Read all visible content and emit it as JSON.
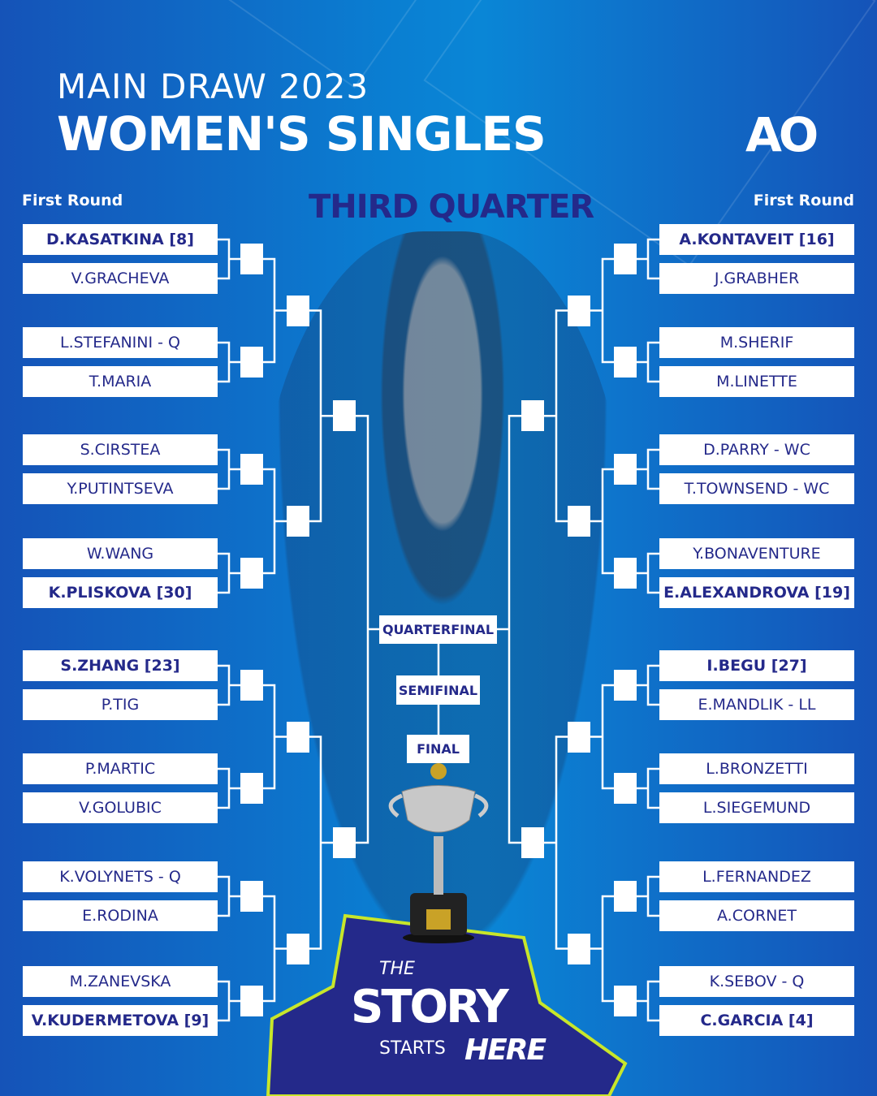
{
  "header": {
    "subtitle": "MAIN DRAW 2023",
    "title": "WOMEN'S SINGLES",
    "logo": "AO",
    "section": "THIRD QUARTER"
  },
  "left": {
    "round_label": "First Round",
    "players": [
      {
        "name": "D.KASATKINA [8]",
        "seed": true
      },
      {
        "name": "V.GRACHEVA",
        "seed": false
      },
      {
        "name": "L.STEFANINI - Q",
        "seed": false
      },
      {
        "name": "T.MARIA",
        "seed": false
      },
      {
        "name": "S.CIRSTEA",
        "seed": false
      },
      {
        "name": "Y.PUTINTSEVA",
        "seed": false
      },
      {
        "name": "W.WANG",
        "seed": false
      },
      {
        "name": "K.PLISKOVA [30]",
        "seed": true
      },
      {
        "name": "S.ZHANG [23]",
        "seed": true
      },
      {
        "name": "P.TIG",
        "seed": false
      },
      {
        "name": "P.MARTIC",
        "seed": false
      },
      {
        "name": "V.GOLUBIC",
        "seed": false
      },
      {
        "name": "K.VOLYNETS - Q",
        "seed": false
      },
      {
        "name": "E.RODINA",
        "seed": false
      },
      {
        "name": "M.ZANEVSKA",
        "seed": false
      },
      {
        "name": "V.KUDERMETOVA [9]",
        "seed": true
      }
    ]
  },
  "right": {
    "round_label": "First Round",
    "players": [
      {
        "name": "A.KONTAVEIT [16]",
        "seed": true
      },
      {
        "name": "J.GRABHER",
        "seed": false
      },
      {
        "name": "M.SHERIF",
        "seed": false
      },
      {
        "name": "M.LINETTE",
        "seed": false
      },
      {
        "name": "D.PARRY - WC",
        "seed": false
      },
      {
        "name": "T.TOWNSEND - WC",
        "seed": false
      },
      {
        "name": "Y.BONAVENTURE",
        "seed": false
      },
      {
        "name": "E.ALEXANDROVA [19]",
        "seed": true
      },
      {
        "name": "I.BEGU [27]",
        "seed": true
      },
      {
        "name": "E.MANDLIK - LL",
        "seed": false
      },
      {
        "name": "L.BRONZETTI",
        "seed": false
      },
      {
        "name": "L.SIEGEMUND",
        "seed": false
      },
      {
        "name": "L.FERNANDEZ",
        "seed": false
      },
      {
        "name": "A.CORNET",
        "seed": false
      },
      {
        "name": "K.SEBOV - Q",
        "seed": false
      },
      {
        "name": "C.GARCIA [4]",
        "seed": true
      }
    ]
  },
  "stages": {
    "quarterfinal": "QUARTERFINAL",
    "semifinal": "SEMIFINAL",
    "final": "FINAL"
  },
  "tagline": {
    "the": "THE",
    "story": "STORY",
    "starts": "STARTS",
    "here": "HERE"
  },
  "colors": {
    "navy": "#24298a",
    "accent": "#c8e62a",
    "background": "#0a7fd2"
  }
}
